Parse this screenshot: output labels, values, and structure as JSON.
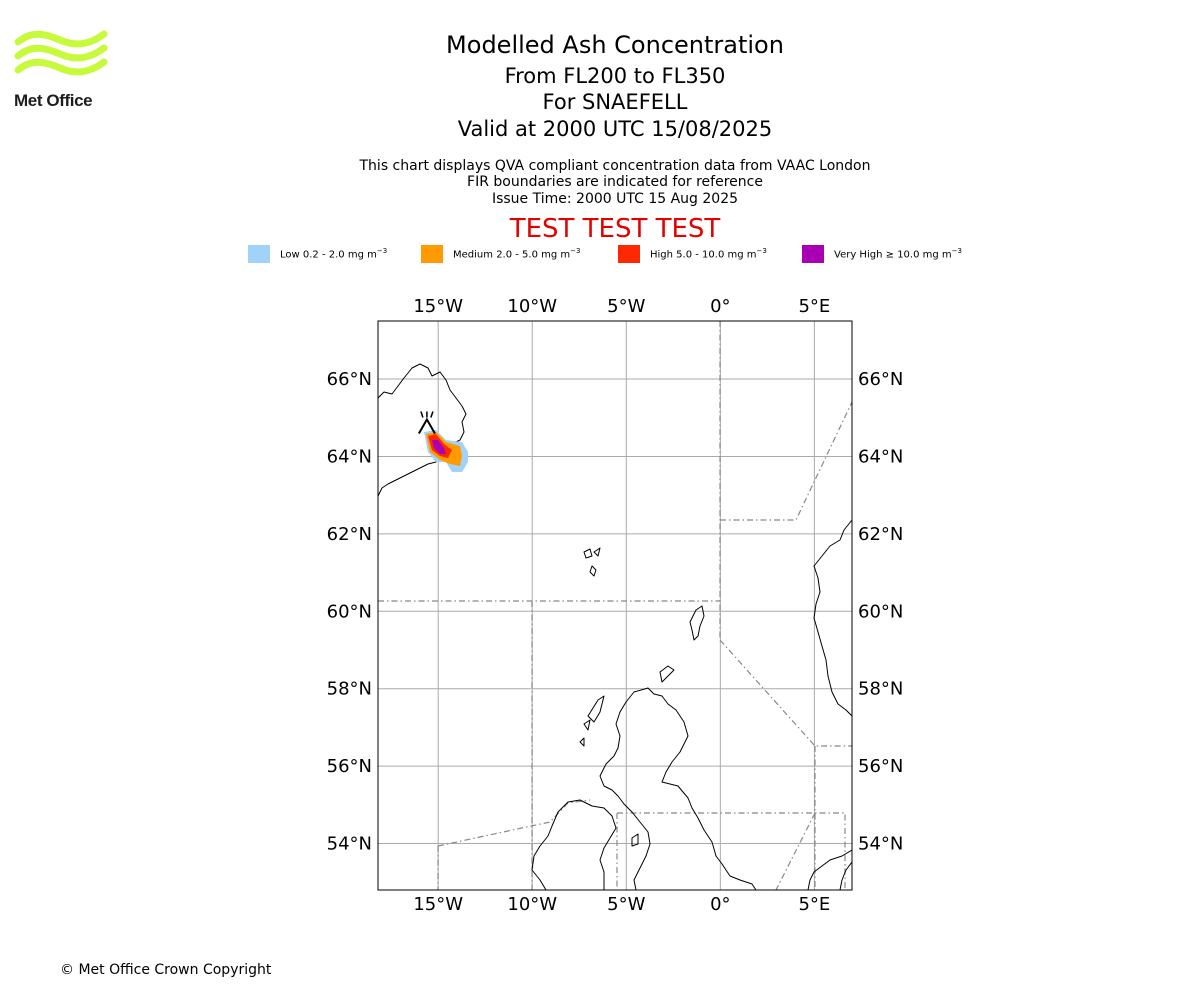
{
  "logo": {
    "brand": "Met Office",
    "wave_color": "#c8fa3c"
  },
  "header": {
    "title": "Modelled Ash Concentration",
    "levels": "From FL200 to FL350",
    "volcano": "For SNAEFELL",
    "valid": "Valid at 2000 UTC 15/08/2025"
  },
  "subtitle": {
    "line1": "This chart displays QVA compliant concentration data from VAAC London",
    "line2": "FIR boundaries are indicated for reference",
    "line3": "Issue Time: 2000 UTC 15 Aug 2025"
  },
  "banner": {
    "text": "TEST TEST TEST",
    "color": "#e50000"
  },
  "legend": [
    {
      "name": "Low",
      "range": "0.2 - 2.0 mg m",
      "color": "#a0d2fa",
      "prefix": ""
    },
    {
      "name": "Medium",
      "range": "2.0 - 5.0 mg m",
      "color": "#ff9b00",
      "prefix": ""
    },
    {
      "name": "High",
      "range": "5.0 - 10.0 mg m",
      "color": "#ff2800",
      "prefix": ""
    },
    {
      "name": "Very High",
      "range": "10.0 mg m",
      "color": "#aa00b4",
      "prefix": "≥"
    }
  ],
  "legend_unit_exponent": "−3",
  "map": {
    "lon_range": [
      -18.2,
      7.0
    ],
    "lat_range": [
      52.8,
      67.5
    ],
    "lon_ticks": [
      {
        "lon": -15,
        "label": "15°W"
      },
      {
        "lon": -10,
        "label": "10°W"
      },
      {
        "lon": -5,
        "label": "5°W"
      },
      {
        "lon": 0,
        "label": "0°"
      },
      {
        "lon": 5,
        "label": "5°E"
      }
    ],
    "lat_ticks": [
      {
        "lat": 66,
        "label": "66°N"
      },
      {
        "lat": 64,
        "label": "64°N"
      },
      {
        "lat": 62,
        "label": "62°N"
      },
      {
        "lat": 60,
        "label": "60°N"
      },
      {
        "lat": 58,
        "label": "58°N"
      },
      {
        "lat": 56,
        "label": "56°N"
      },
      {
        "lat": 54,
        "label": "54°N"
      }
    ],
    "gridlines": true,
    "volcano_location": {
      "lon": -15.6,
      "lat": 64.8
    },
    "coastline_color": "#000000",
    "fir_boundary_color": "#888888",
    "grid_color": "#aaaaaa"
  },
  "footer": {
    "copyright": "© Met Office Crown Copyright"
  }
}
